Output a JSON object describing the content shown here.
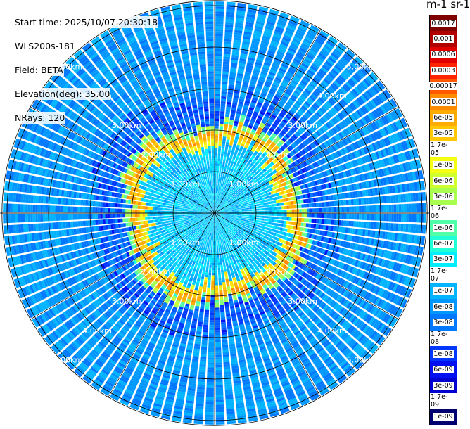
{
  "chart_data": {
    "type": "heatmap",
    "subtype": "lidar-ppi-polar",
    "info": {
      "start_time": "Start time: 2025/10/07 20:30:18",
      "instrument": "WLS200s-181",
      "field": "Field: BETA",
      "elevation": "Elevation(deg): 35.00",
      "nrays": "NRays: 120"
    },
    "colorbar_title": "m-1 sr-1",
    "colorbar": [
      {
        "label": "0.0017",
        "color": "#800000"
      },
      {
        "label": "0.001",
        "color": "#b00000"
      },
      {
        "label": "0.0006",
        "color": "#e00000"
      },
      {
        "label": "0.0003",
        "color": "#ff2400"
      },
      {
        "label": "0.00017",
        "color": "#ff5a00"
      },
      {
        "label": "0.0001",
        "color": "#ff8c00"
      },
      {
        "label": "6e-05",
        "color": "#ffac00"
      },
      {
        "label": "3e-05",
        "color": "#ffc800"
      },
      {
        "label": "1.7e-05",
        "color": "#ffe000"
      },
      {
        "label": "1e-05",
        "color": "#f4ff14"
      },
      {
        "label": "6e-06",
        "color": "#d0ff30"
      },
      {
        "label": "3e-06",
        "color": "#a8ff50"
      },
      {
        "label": "1.7e-06",
        "color": "#80ff78"
      },
      {
        "label": "1e-06",
        "color": "#50ffa8"
      },
      {
        "label": "6e-07",
        "color": "#20ffd8"
      },
      {
        "label": "3e-07",
        "color": "#00eeff"
      },
      {
        "label": "1.7e-07",
        "color": "#00d0ff"
      },
      {
        "label": "1e-07",
        "color": "#00b4ff"
      },
      {
        "label": "6e-08",
        "color": "#0098ff"
      },
      {
        "label": "3e-08",
        "color": "#0078ff"
      },
      {
        "label": "1.7e-08",
        "color": "#0058ff"
      },
      {
        "label": "1e-08",
        "color": "#0038ff"
      },
      {
        "label": "6e-09",
        "color": "#0010f0"
      },
      {
        "label": "3e-09",
        "color": "#0000d0"
      },
      {
        "label": "1.7e-09",
        "color": "#0000a0"
      },
      {
        "label": "1e-09",
        "color": "#000070"
      }
    ],
    "range_rings": [
      {
        "km": 1,
        "label": "1.00km"
      },
      {
        "km": 2,
        "label": "2.00km"
      },
      {
        "km": 3,
        "label": "3.00km"
      },
      {
        "km": 4,
        "label": "4.00km"
      },
      {
        "km": 5,
        "label": "5.00km"
      }
    ],
    "max_range_km": 5.8,
    "n_rays": 120,
    "spokes_every_deg": 30,
    "aerosol_ring": {
      "inner_km": 1.7,
      "outer_km": 2.2,
      "color_range": [
        "0.0001",
        "3e-05"
      ]
    },
    "inner_region_level": "1.7e-07",
    "outer_region_level": "6e-08"
  }
}
